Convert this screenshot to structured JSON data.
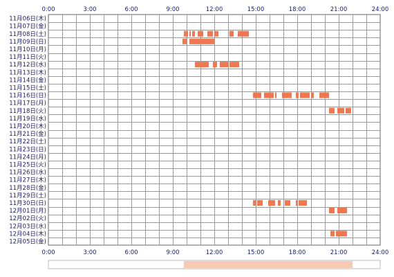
{
  "chart_data": {
    "type": "heatmap",
    "x_ticks": [
      "0:00",
      "3:00",
      "6:00",
      "9:00",
      "12:00",
      "15:00",
      "18:00",
      "21:00",
      "24:00"
    ],
    "xlim": [
      0,
      24
    ],
    "rows": [
      "11月06日(木)",
      "11月07日(金)",
      "11月08日(土)",
      "11月09日(日)",
      "11月10日(月)",
      "11月11日(火)",
      "11月12日(水)",
      "11月13日(木)",
      "11月14日(金)",
      "11月15日(土)",
      "11月16日(日)",
      "11月17日(月)",
      "11月18日(火)",
      "11月19日(水)",
      "11月20日(木)",
      "11月21日(金)",
      "11月22日(土)",
      "11月23日(日)",
      "11月24日(月)",
      "11月25日(火)",
      "11月26日(水)",
      "11月27日(木)",
      "11月28日(金)",
      "11月29日(土)",
      "11月30日(日)",
      "12月01日(月)",
      "12月02日(火)",
      "12月03日(水)",
      "12月04日(木)",
      "12月05日(金)"
    ],
    "grid": true,
    "bar_color": "#f07850",
    "sessions": [
      {
        "row": 2,
        "start": 9.8,
        "end": 10.1
      },
      {
        "row": 2,
        "start": 10.2,
        "end": 10.3
      },
      {
        "row": 2,
        "start": 10.4,
        "end": 10.6
      },
      {
        "row": 2,
        "start": 10.8,
        "end": 11.2
      },
      {
        "row": 2,
        "start": 11.5,
        "end": 11.9
      },
      {
        "row": 2,
        "start": 12.0,
        "end": 12.3
      },
      {
        "row": 2,
        "start": 13.1,
        "end": 13.4
      },
      {
        "row": 2,
        "start": 13.7,
        "end": 14.5
      },
      {
        "row": 3,
        "start": 9.7,
        "end": 10.0
      },
      {
        "row": 3,
        "start": 10.2,
        "end": 12.0
      },
      {
        "row": 6,
        "start": 10.6,
        "end": 11.6
      },
      {
        "row": 6,
        "start": 11.9,
        "end": 12.2
      },
      {
        "row": 6,
        "start": 12.4,
        "end": 13.0
      },
      {
        "row": 6,
        "start": 13.1,
        "end": 13.8
      },
      {
        "row": 10,
        "start": 14.8,
        "end": 15.4
      },
      {
        "row": 10,
        "start": 15.6,
        "end": 16.3
      },
      {
        "row": 10,
        "start": 16.4,
        "end": 16.5
      },
      {
        "row": 10,
        "start": 16.9,
        "end": 17.6
      },
      {
        "row": 10,
        "start": 17.9,
        "end": 18.1
      },
      {
        "row": 10,
        "start": 18.2,
        "end": 18.9
      },
      {
        "row": 10,
        "start": 19.0,
        "end": 19.2
      },
      {
        "row": 10,
        "start": 19.6,
        "end": 20.3
      },
      {
        "row": 12,
        "start": 20.3,
        "end": 20.7
      },
      {
        "row": 12,
        "start": 20.9,
        "end": 21.4
      },
      {
        "row": 12,
        "start": 21.5,
        "end": 21.9
      },
      {
        "row": 24,
        "start": 14.8,
        "end": 15.0
      },
      {
        "row": 24,
        "start": 15.1,
        "end": 15.5
      },
      {
        "row": 24,
        "start": 15.9,
        "end": 16.4
      },
      {
        "row": 24,
        "start": 16.6,
        "end": 16.8
      },
      {
        "row": 24,
        "start": 17.1,
        "end": 17.5
      },
      {
        "row": 24,
        "start": 17.9,
        "end": 18.0
      },
      {
        "row": 24,
        "start": 18.1,
        "end": 18.7
      },
      {
        "row": 25,
        "start": 20.3,
        "end": 20.7
      },
      {
        "row": 25,
        "start": 20.9,
        "end": 21.6
      },
      {
        "row": 28,
        "start": 20.4,
        "end": 20.7
      },
      {
        "row": 28,
        "start": 20.8,
        "end": 21.6
      }
    ],
    "density_bar": {
      "color": "#f5b496",
      "segments": [
        [
          9.8,
          22.0
        ]
      ]
    }
  }
}
